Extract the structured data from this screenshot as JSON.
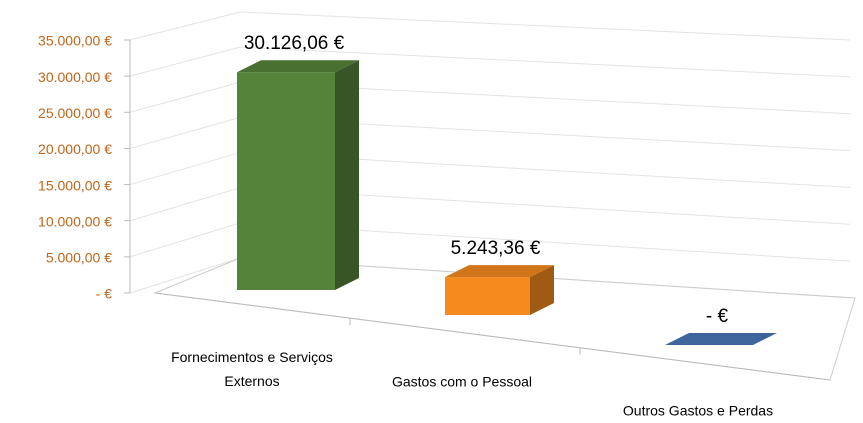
{
  "chart_data": {
    "type": "bar3d",
    "categories": [
      "Fornecimentos e Serviços Externos",
      "Gastos com o Pessoal",
      "Outros Gastos e Perdas"
    ],
    "values": [
      30126.06,
      5243.36,
      0
    ],
    "value_labels": [
      "30.126,06 €",
      "5.243,36 €",
      "-   €"
    ],
    "colors": [
      "#56833a",
      "#f58a1f",
      "#4a78b8"
    ],
    "ylim": [
      0,
      35000
    ],
    "yticks": [
      {
        "value": 0,
        "label": "-   €"
      },
      {
        "value": 5000,
        "label": "5.000,00 €"
      },
      {
        "value": 10000,
        "label": "10.000,00 €"
      },
      {
        "value": 15000,
        "label": "15.000,00 €"
      },
      {
        "value": 20000,
        "label": "20.000,00 €"
      },
      {
        "value": 25000,
        "label": "25.000,00 €"
      },
      {
        "value": 30000,
        "label": "30.000,00 €"
      },
      {
        "value": 35000,
        "label": "35.000,00 €"
      }
    ],
    "grid": true
  }
}
